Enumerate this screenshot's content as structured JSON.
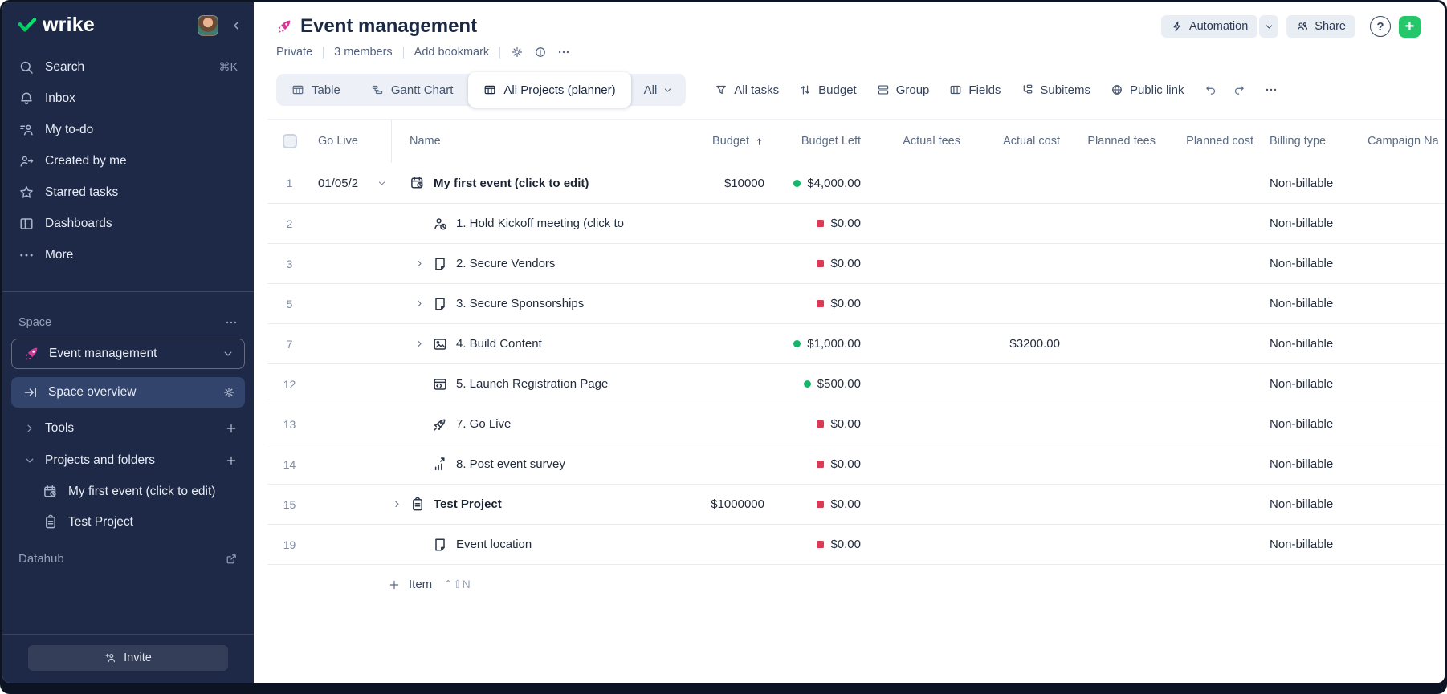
{
  "app": {
    "logo_text": "wrike"
  },
  "sidebar": {
    "nav": [
      {
        "icon": "search",
        "label": "Search",
        "shortcut": "⌘K"
      },
      {
        "icon": "bell",
        "label": "Inbox",
        "shortcut": ""
      },
      {
        "icon": "todo",
        "label": "My to-do",
        "shortcut": ""
      },
      {
        "icon": "person-arrow",
        "label": "Created by me",
        "shortcut": ""
      },
      {
        "icon": "star",
        "label": "Starred tasks",
        "shortcut": ""
      },
      {
        "icon": "dashboard",
        "label": "Dashboards",
        "shortcut": ""
      },
      {
        "icon": "dots",
        "label": "More",
        "shortcut": ""
      }
    ],
    "space": {
      "section_label": "Space",
      "name": "Event management",
      "overview_label": "Space overview",
      "tree": [
        {
          "chevron": "chevron-right",
          "label": "Tools"
        },
        {
          "chevron": "chevron-down",
          "label": "Projects and folders"
        }
      ],
      "projects": [
        {
          "icon": "calendar",
          "label": "My first event (click to edit)"
        },
        {
          "icon": "clipboard",
          "label": "Test Project"
        }
      ]
    },
    "datahub_label": "Datahub",
    "invite_label": "Invite"
  },
  "header": {
    "title": "Event management",
    "meta": [
      "Private",
      "3 members",
      "Add bookmark"
    ],
    "automation_label": "Automation",
    "share_label": "Share",
    "help_label": "?"
  },
  "toolbar": {
    "tabs": [
      {
        "icon": "table",
        "label": "Table",
        "active": false
      },
      {
        "icon": "gantt",
        "label": "Gantt Chart",
        "active": false
      },
      {
        "icon": "table",
        "label": "All Projects (planner)",
        "active": true
      }
    ],
    "filter_label": "All",
    "actions": [
      {
        "icon": "filter",
        "label": "All tasks"
      },
      {
        "icon": "sort",
        "label": "Budget"
      },
      {
        "icon": "group",
        "label": "Group"
      },
      {
        "icon": "fields",
        "label": "Fields"
      },
      {
        "icon": "subitems",
        "label": "Subitems"
      },
      {
        "icon": "globe",
        "label": "Public link"
      }
    ]
  },
  "table": {
    "columns": {
      "go_live": "Go Live",
      "name": "Name",
      "budget": "Budget",
      "budget_left": "Budget Left",
      "actual_fees": "Actual fees",
      "actual_cost": "Actual cost",
      "planned_fees": "Planned fees",
      "planned_cost": "Planned cost",
      "billing_type": "Billing type",
      "campaign": "Campaign Na"
    },
    "rows": [
      {
        "num": "1",
        "go_live": "01/05/2",
        "date_dropdown": true,
        "chevron": false,
        "icon": "calendar",
        "name": "My first event (click to edit)",
        "bold": true,
        "level": 0,
        "budget": "$10000",
        "budget_left": "$4,000.00",
        "status": "green",
        "actual_cost": "",
        "billing": "Non-billable"
      },
      {
        "num": "2",
        "go_live": "",
        "date_dropdown": false,
        "chevron": false,
        "icon": "person-task",
        "name": "1. Hold Kickoff meeting (click to",
        "bold": false,
        "level": 1,
        "budget": "",
        "budget_left": "$0.00",
        "status": "red",
        "actual_cost": "",
        "billing": "Non-billable"
      },
      {
        "num": "3",
        "go_live": "",
        "date_dropdown": false,
        "chevron": true,
        "icon": "doc",
        "name": "2. Secure Vendors",
        "bold": false,
        "level": 1,
        "budget": "",
        "budget_left": "$0.00",
        "status": "red",
        "actual_cost": "",
        "billing": "Non-billable"
      },
      {
        "num": "5",
        "go_live": "",
        "date_dropdown": false,
        "chevron": true,
        "icon": "doc",
        "name": "3. Secure Sponsorships",
        "bold": false,
        "level": 1,
        "budget": "",
        "budget_left": "$0.00",
        "status": "red",
        "actual_cost": "",
        "billing": "Non-billable"
      },
      {
        "num": "7",
        "go_live": "",
        "date_dropdown": false,
        "chevron": true,
        "icon": "image",
        "name": "4. Build Content",
        "bold": false,
        "level": 1,
        "budget": "",
        "budget_left": "$1,000.00",
        "status": "green",
        "actual_cost": "$3200.00",
        "billing": "Non-billable"
      },
      {
        "num": "12",
        "go_live": "",
        "date_dropdown": false,
        "chevron": false,
        "icon": "browser",
        "name": "5. Launch Registration Page",
        "bold": false,
        "level": 1,
        "budget": "",
        "budget_left": "$500.00",
        "status": "green",
        "actual_cost": "",
        "billing": "Non-billable"
      },
      {
        "num": "13",
        "go_live": "",
        "date_dropdown": false,
        "chevron": false,
        "icon": "rocket-outline",
        "name": "7. Go Live",
        "bold": false,
        "level": 1,
        "budget": "",
        "budget_left": "$0.00",
        "status": "red",
        "actual_cost": "",
        "billing": "Non-billable"
      },
      {
        "num": "14",
        "go_live": "",
        "date_dropdown": false,
        "chevron": false,
        "icon": "survey",
        "name": "8. Post event survey",
        "bold": false,
        "level": 1,
        "budget": "",
        "budget_left": "$0.00",
        "status": "red",
        "actual_cost": "",
        "billing": "Non-billable"
      },
      {
        "num": "15",
        "go_live": "",
        "date_dropdown": false,
        "chevron": true,
        "icon": "clipboard",
        "name": "Test Project",
        "bold": true,
        "level": 0,
        "budget": "$1000000",
        "budget_left": "$0.00",
        "status": "red",
        "actual_cost": "",
        "billing": "Non-billable"
      },
      {
        "num": "19",
        "go_live": "",
        "date_dropdown": false,
        "chevron": false,
        "icon": "doc",
        "name": "Event location",
        "bold": false,
        "level": 1,
        "budget": "",
        "budget_left": "$0.00",
        "status": "red",
        "actual_cost": "",
        "billing": "Non-billable"
      }
    ],
    "add_item": {
      "label": "Item",
      "shortcut": "⌃⇧N"
    }
  },
  "colors": {
    "brand_green": "#00cf5f",
    "brand_pink": "#cf3c96",
    "status_green": "#12b76a",
    "status_red": "#da3b52",
    "sidebar_bg": "#1d2946"
  }
}
